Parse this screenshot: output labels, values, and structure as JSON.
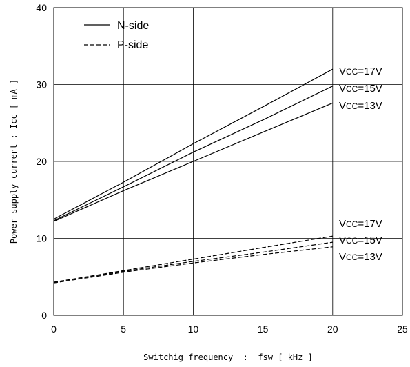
{
  "chart_data": {
    "type": "line",
    "xlabel": "Switchig frequency  :  fsw [ kHz ]",
    "ylabel": "Power supply current : Icc [ mA ]",
    "xlim": [
      0,
      25
    ],
    "ylim": [
      0,
      40
    ],
    "xticks": [
      "0",
      "5",
      "10",
      "15",
      "20",
      "25"
    ],
    "yticks": [
      "0",
      "10",
      "20",
      "30",
      "40"
    ],
    "grid": true,
    "legend": {
      "position": "top-left",
      "entries": [
        {
          "label": "N-side",
          "style": "solid"
        },
        {
          "label": "P-side",
          "style": "dashed"
        }
      ]
    },
    "series": [
      {
        "group": "N-side",
        "label": "VCC=17V",
        "style": "solid",
        "x": [
          0,
          5,
          10,
          15,
          20
        ],
        "y": [
          12.5,
          17.3,
          22.3,
          27.1,
          32.0
        ]
      },
      {
        "group": "N-side",
        "label": "VCC=15V",
        "style": "solid",
        "x": [
          0,
          5,
          10,
          15,
          20
        ],
        "y": [
          12.3,
          16.7,
          21.2,
          25.4,
          29.8
        ]
      },
      {
        "group": "N-side",
        "label": "VCC=13V",
        "style": "solid",
        "x": [
          0,
          5,
          10,
          15,
          20
        ],
        "y": [
          12.2,
          16.2,
          20.0,
          23.8,
          27.6
        ]
      },
      {
        "group": "P-side",
        "label": "VCC=17V",
        "style": "dashed",
        "x": [
          0,
          5,
          10,
          15,
          20
        ],
        "y": [
          4.3,
          5.8,
          7.3,
          8.8,
          10.3
        ]
      },
      {
        "group": "P-side",
        "label": "VCC=15V",
        "style": "dashed",
        "x": [
          0,
          5,
          10,
          15,
          20
        ],
        "y": [
          4.3,
          5.7,
          7.0,
          8.2,
          9.5
        ]
      },
      {
        "group": "P-side",
        "label": "VCC=13V",
        "style": "dashed",
        "x": [
          0,
          5,
          10,
          15,
          20
        ],
        "y": [
          4.2,
          5.6,
          6.8,
          7.9,
          8.9
        ]
      }
    ],
    "end_labels": {
      "n_side": [
        "VCC=17V",
        "VCC=15V",
        "VCC=13V"
      ],
      "p_side": [
        "VCC=17V",
        "VCC=15V",
        "VCC=13V"
      ]
    }
  }
}
